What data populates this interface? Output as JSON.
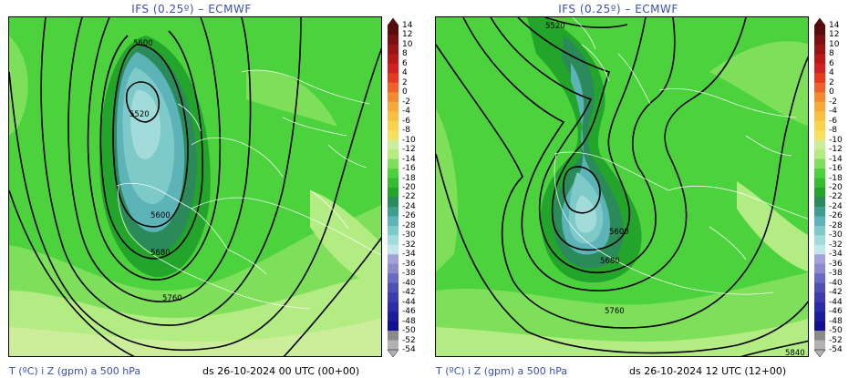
{
  "panels": [
    {
      "title": "IFS (0.25º) – ECMWF",
      "footer_variable": "T (ºC) i Z (gpm) a 500 hPa",
      "footer_date": "ds 26-10-2024 00 UTC (00+00)",
      "contour_labels": [
        "5600",
        "5520",
        "5600",
        "5680",
        "5760"
      ]
    },
    {
      "title": "IFS (0.25º) – ECMWF",
      "footer_variable": "T (ºC) i Z (gpm) a 500 hPa",
      "footer_date": "ds 26-10-2024 12 UTC (12+00)",
      "contour_labels": [
        "5520",
        "5600",
        "5680",
        "5760",
        "5840"
      ]
    }
  ],
  "colorbar": {
    "labels": [
      "14",
      "12",
      "10",
      "8",
      "6",
      "4",
      "2",
      "0",
      "-2",
      "-4",
      "-6",
      "-8",
      "-10",
      "-12",
      "-14",
      "-16",
      "-18",
      "-20",
      "-22",
      "-24",
      "-26",
      "-28",
      "-30",
      "-32",
      "-34",
      "-36",
      "-38",
      "-40",
      "-42",
      "-44",
      "-46",
      "-48",
      "-50",
      "-52",
      "-54"
    ],
    "colors": [
      "#5a0c0c",
      "#7a1010",
      "#9a1414",
      "#b81818",
      "#d42020",
      "#e63a1e",
      "#f0602a",
      "#f48a30",
      "#f6a83a",
      "#f8c040",
      "#fad24e",
      "#f6e060",
      "#ccee9a",
      "#b4ec84",
      "#7ee05a",
      "#4cd23c",
      "#36bc30",
      "#22a52a",
      "#2a8a5a",
      "#3e9e8e",
      "#5cb4b8",
      "#7ecac8",
      "#a2dcda",
      "#c0e8e6",
      "#a2a2d8",
      "#8a8acc",
      "#6a6ac4",
      "#5050b4",
      "#3c3cb0",
      "#2c2ca8",
      "#1c1c9e",
      "#101090",
      "#8a8a8a",
      "#b2b2b2"
    ]
  }
}
